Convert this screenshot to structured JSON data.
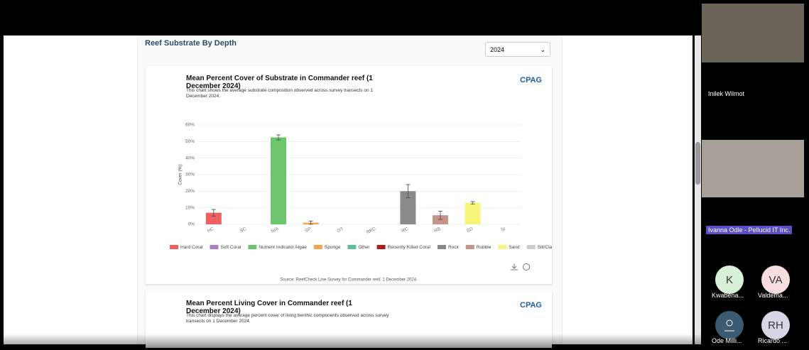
{
  "section_title": "Reef Substrate By Depth",
  "year_select": "2024",
  "chart_card": {
    "title": "Mean Percent Cover of Substrate in Commander reef (1 December 2024)",
    "description": "This chart shows the average substrate composition observed across survey transects on 1 December 2024.",
    "logo": "CPAG",
    "source": "Source: ReefCheck Line Survey for Commander reef, 1 December 2024.",
    "chart_data": {
      "type": "bar",
      "y_label": "Cover (%)",
      "categories": [
        "HC",
        "SC",
        "NIA",
        "SP",
        "OT",
        "RKC",
        "RC",
        "RB",
        "SD",
        "SI"
      ],
      "values": [
        7,
        0,
        52.5,
        1,
        0,
        0,
        20,
        5.5,
        13,
        0
      ],
      "errors": [
        2,
        0,
        1.5,
        1,
        0,
        0,
        4,
        2.5,
        0.7,
        0
      ],
      "colors": [
        "#f06060",
        "#b07cc6",
        "#6cc46c",
        "#f5a54a",
        "#5cc0a0",
        "#b01c1c",
        "#8a8a8a",
        "#c49488",
        "#f7f57a",
        "#cccccc"
      ],
      "legend": [
        "Hard Coral",
        "Soft Coral",
        "Nutrient Indicator Algae",
        "Sponge",
        "Other",
        "Recently Killed Coral",
        "Rock",
        "Rubble",
        "Sand",
        "Silt/Clay"
      ],
      "ylim": [
        0,
        60
      ],
      "yticks": [
        {
          "value": 0,
          "label": "0%"
        },
        {
          "value": 10,
          "label": "10%"
        },
        {
          "value": 20,
          "label": "20%"
        },
        {
          "value": 30,
          "label": "30%"
        },
        {
          "value": 40,
          "label": "40%"
        },
        {
          "value": 50,
          "label": "50%"
        },
        {
          "value": 60,
          "label": "60%"
        }
      ],
      "grid": true
    }
  },
  "second_card": {
    "title": "Mean Percent Living Cover in Commander reef (1 December 2024)",
    "description": "This chart displays the average percent cover of living benthic components observed across survey transects on 1 December 2024.",
    "logo": "CPAG"
  },
  "participants": {
    "name_1": "Inilek Wilmot",
    "name_2": "Ivanna Odle - Pellucid IT Inc.",
    "tiles": [
      {
        "initials": "K",
        "name": "Kwabena..."
      },
      {
        "initials": "VA",
        "name": "Valdema..."
      },
      {
        "initials": null,
        "name": "Ode Milli..."
      },
      {
        "initials": "RH",
        "name": "Ricardo ..."
      }
    ]
  }
}
